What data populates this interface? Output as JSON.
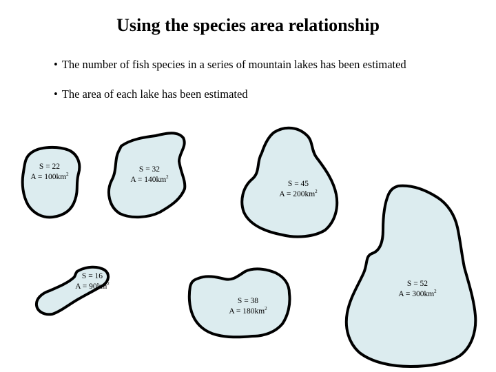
{
  "title": "Using the species area relationship",
  "bullets": [
    "The number of fish species in a series of mountain lakes has been estimated",
    "The area of each lake has been estimated"
  ],
  "bullet_symbol": "•",
  "lake_fill_color": "#dcecef",
  "lake_stroke_color": "#000000",
  "area_unit_superscript": "2",
  "lakes": [
    {
      "species": "S = 22",
      "area": "A = 100km"
    },
    {
      "species": "S = 32",
      "area": "A = 140km"
    },
    {
      "species": "S = 45",
      "area": "A = 200km"
    },
    {
      "species": "S = 16",
      "area": "A = 90km"
    },
    {
      "species": "S = 38",
      "area": "A = 180km"
    },
    {
      "species": "S = 52",
      "area": "A = 300km"
    }
  ]
}
